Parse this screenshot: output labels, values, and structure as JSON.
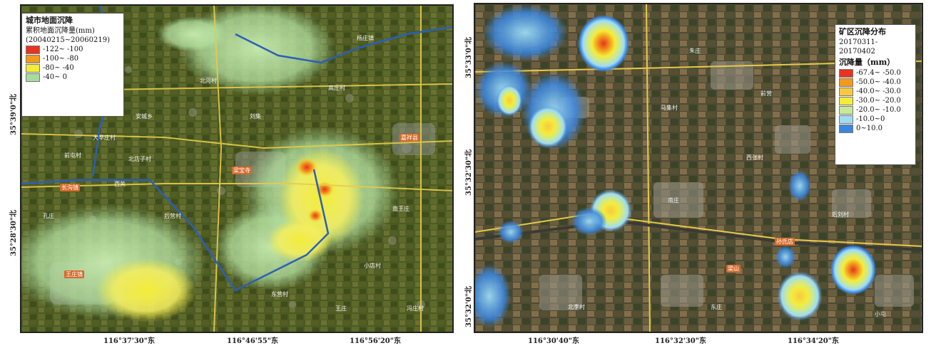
{
  "left_map": {
    "legend_title": "城市地面沉降",
    "legend_subtitle": "累积地面沉降量(mm)",
    "legend_dates": "(20040215~20060219)",
    "classes": [
      {
        "label": "-122~ -100",
        "color": "#e8331f"
      },
      {
        "label": "-100~ -80",
        "color": "#f29a1c"
      },
      {
        "label": "-80~ -40",
        "color": "#f4ec3a"
      },
      {
        "label": "-40~ 0",
        "color": "#a8dba0"
      }
    ],
    "x_ticks": [
      "116°37'30\"东",
      "116°46'55\"东",
      "116°56'20\"东"
    ],
    "y_ticks": [
      "35°39'0\"北",
      "35°28'30\"北"
    ],
    "place_labels": [
      "北河村",
      "安城乡",
      "杨庄镇",
      "高庄村",
      "北店子村",
      "南王庄",
      "刘集",
      "前屯村",
      "后营村",
      "大辛庄村",
      "小店村",
      "孔庄",
      "冯庄村",
      "西关",
      "东营村",
      "王庄"
    ],
    "tag_labels": [
      "长沟镇",
      "梁宝寺",
      "嘉祥县",
      "王庄镇"
    ]
  },
  "right_map": {
    "legend_title": "矿区沉降分布",
    "legend_dates": "20170311-20170402",
    "legend_units": "沉降量（mm）",
    "classes": [
      {
        "label": "-67.4~ -50.0",
        "color": "#e8331f"
      },
      {
        "label": "-50.0~ -40.0",
        "color": "#f29a1c"
      },
      {
        "label": "-40.0~ -30.0",
        "color": "#f7c940"
      },
      {
        "label": "-30.0~ -20.0",
        "color": "#f4ec3a"
      },
      {
        "label": "-20.0~ -10.0",
        "color": "#c8e89a"
      },
      {
        "label": "-10.0~0",
        "color": "#9fdcf2"
      },
      {
        "label": "0~10.0",
        "color": "#3a86e0"
      }
    ],
    "x_ticks": [
      "116°30'40\"东",
      "116°32'30\"东",
      "116°34'20\"东"
    ],
    "y_ticks": [
      "35°33'0\"北",
      "35°32'30\"北",
      "35°32'0\"北"
    ],
    "place_labels": [
      "朱庄",
      "马集村",
      "西张村",
      "南庄",
      "后刘村",
      "东庄",
      "北李村",
      "前营",
      "小屯"
    ],
    "tag_labels": [
      "孙氏店",
      "梁山"
    ]
  }
}
